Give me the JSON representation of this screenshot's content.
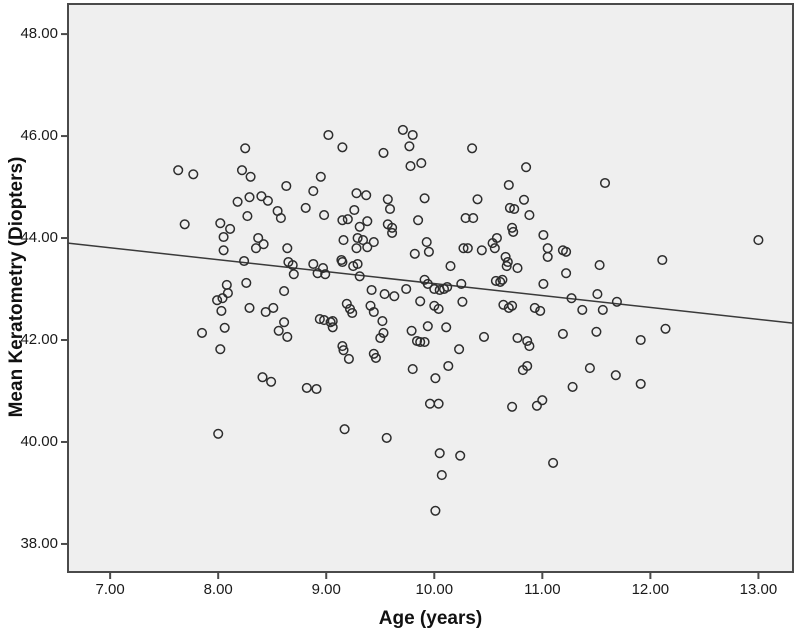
{
  "chart_data": {
    "type": "scatter",
    "title": "",
    "xlabel": "Age (years)",
    "ylabel": "Mean Keratometry (Diopters)",
    "x_ticks": [
      7,
      8,
      9,
      10,
      11,
      12,
      13
    ],
    "x_tick_labels": [
      "7.00",
      "8.00",
      "9.00",
      "10.00",
      "11.00",
      "12.00",
      "13.00"
    ],
    "y_ticks": [
      38,
      40,
      42,
      44,
      46,
      48
    ],
    "y_tick_labels": [
      "38.00",
      "40.00",
      "42.00",
      "44.00",
      "46.00",
      "48.00"
    ],
    "xlim": [
      6.61,
      13.32
    ],
    "ylim": [
      37.45,
      48.59
    ],
    "grid": false,
    "legend": "none",
    "marker": "open-circle",
    "colors": {
      "canvas_bg": "#ffffff",
      "plot_bg": "#efefef",
      "frame": "#4a4a4a",
      "marker": "#2d2d2d",
      "line": "#3a3a3a",
      "text": "#111111"
    },
    "regression_line": {
      "x1": 6.61,
      "y1": 43.9,
      "x2": 13.32,
      "y2": 42.33,
      "slope_per_year": -0.23
    },
    "points": [
      [
        8.25,
        45.76
      ],
      [
        7.63,
        45.33
      ],
      [
        7.77,
        45.25
      ],
      [
        8.22,
        45.33
      ],
      [
        8.3,
        45.2
      ],
      [
        8.63,
        45.02
      ],
      [
        9.02,
        46.02
      ],
      [
        9.15,
        45.78
      ],
      [
        9.71,
        46.12
      ],
      [
        9.8,
        46.02
      ],
      [
        9.77,
        45.8
      ],
      [
        9.53,
        45.67
      ],
      [
        10.35,
        45.76
      ],
      [
        9.78,
        45.41
      ],
      [
        9.88,
        45.47
      ],
      [
        10.85,
        45.39
      ],
      [
        8.95,
        45.2
      ],
      [
        10.69,
        45.04
      ],
      [
        11.58,
        45.08
      ],
      [
        8.18,
        44.71
      ],
      [
        8.29,
        44.8
      ],
      [
        8.4,
        44.82
      ],
      [
        8.46,
        44.73
      ],
      [
        8.55,
        44.53
      ],
      [
        8.81,
        44.59
      ],
      [
        8.58,
        44.39
      ],
      [
        8.27,
        44.43
      ],
      [
        7.69,
        44.27
      ],
      [
        8.02,
        44.29
      ],
      [
        8.11,
        44.18
      ],
      [
        8.05,
        44.02
      ],
      [
        8.37,
        44.0
      ],
      [
        8.42,
        43.88
      ],
      [
        8.35,
        43.8
      ],
      [
        8.64,
        43.8
      ],
      [
        8.65,
        43.53
      ],
      [
        8.69,
        43.47
      ],
      [
        8.7,
        43.29
      ],
      [
        8.24,
        43.55
      ],
      [
        8.05,
        43.76
      ],
      [
        8.26,
        43.12
      ],
      [
        8.08,
        43.08
      ],
      [
        8.09,
        42.92
      ],
      [
        7.99,
        42.78
      ],
      [
        8.04,
        42.82
      ],
      [
        8.03,
        42.57
      ],
      [
        8.29,
        42.63
      ],
      [
        8.44,
        42.55
      ],
      [
        8.51,
        42.63
      ],
      [
        8.61,
        42.96
      ],
      [
        8.61,
        42.35
      ],
      [
        8.56,
        42.18
      ],
      [
        8.64,
        42.06
      ],
      [
        7.85,
        42.14
      ],
      [
        8.06,
        42.24
      ],
      [
        8.02,
        41.82
      ],
      [
        8.41,
        41.27
      ],
      [
        8.49,
        41.18
      ],
      [
        8.0,
        40.16
      ],
      [
        8.98,
        44.45
      ],
      [
        9.15,
        44.35
      ],
      [
        9.26,
        44.55
      ],
      [
        9.57,
        44.76
      ],
      [
        9.59,
        44.57
      ],
      [
        9.91,
        44.78
      ],
      [
        10.4,
        44.76
      ],
      [
        10.7,
        44.59
      ],
      [
        10.74,
        44.57
      ],
      [
        10.83,
        44.75
      ],
      [
        10.88,
        44.45
      ],
      [
        9.31,
        44.22
      ],
      [
        9.38,
        44.33
      ],
      [
        9.57,
        44.27
      ],
      [
        9.61,
        44.2
      ],
      [
        9.61,
        44.1
      ],
      [
        9.85,
        44.35
      ],
      [
        10.29,
        44.39
      ],
      [
        10.36,
        44.39
      ],
      [
        9.16,
        43.96
      ],
      [
        9.29,
        44.0
      ],
      [
        9.34,
        43.96
      ],
      [
        9.44,
        43.92
      ],
      [
        9.28,
        43.8
      ],
      [
        9.38,
        43.82
      ],
      [
        9.93,
        43.92
      ],
      [
        9.82,
        43.69
      ],
      [
        9.95,
        43.73
      ],
      [
        10.27,
        43.8
      ],
      [
        10.31,
        43.8
      ],
      [
        10.44,
        43.76
      ],
      [
        10.56,
        43.8
      ],
      [
        10.54,
        43.9
      ],
      [
        10.58,
        44.0
      ],
      [
        10.72,
        44.2
      ],
      [
        10.73,
        44.12
      ],
      [
        10.66,
        43.63
      ],
      [
        10.68,
        43.53
      ],
      [
        10.67,
        43.45
      ],
      [
        10.77,
        43.41
      ],
      [
        11.01,
        44.06
      ],
      [
        11.05,
        43.8
      ],
      [
        11.05,
        43.63
      ],
      [
        9.15,
        43.53
      ],
      [
        9.25,
        43.45
      ],
      [
        9.29,
        43.49
      ],
      [
        8.88,
        43.49
      ],
      [
        8.92,
        43.31
      ],
      [
        8.97,
        43.41
      ],
      [
        8.99,
        43.29
      ],
      [
        9.14,
        43.57
      ],
      [
        9.2,
        44.37
      ],
      [
        9.31,
        43.25
      ],
      [
        9.42,
        42.98
      ],
      [
        9.54,
        42.9
      ],
      [
        9.63,
        42.86
      ],
      [
        9.74,
        43.0
      ],
      [
        9.87,
        42.76
      ],
      [
        9.91,
        43.18
      ],
      [
        9.94,
        43.1
      ],
      [
        10.0,
        43.0
      ],
      [
        10.05,
        42.98
      ],
      [
        10.09,
        43.0
      ],
      [
        10.12,
        43.04
      ],
      [
        10.15,
        43.45
      ],
      [
        10.25,
        43.1
      ],
      [
        10.0,
        42.67
      ],
      [
        10.04,
        42.61
      ],
      [
        10.26,
        42.75
      ],
      [
        10.57,
        43.16
      ],
      [
        10.61,
        43.14
      ],
      [
        10.63,
        43.18
      ],
      [
        11.01,
        43.1
      ],
      [
        10.64,
        42.69
      ],
      [
        10.69,
        42.63
      ],
      [
        10.72,
        42.67
      ],
      [
        10.93,
        42.63
      ],
      [
        10.98,
        42.57
      ],
      [
        9.19,
        42.71
      ],
      [
        9.22,
        42.61
      ],
      [
        9.24,
        42.53
      ],
      [
        8.94,
        42.41
      ],
      [
        8.98,
        42.39
      ],
      [
        9.04,
        42.35
      ],
      [
        9.06,
        42.25
      ],
      [
        9.06,
        42.37
      ],
      [
        9.52,
        42.37
      ],
      [
        9.53,
        42.14
      ],
      [
        9.5,
        42.04
      ],
      [
        9.79,
        42.18
      ],
      [
        9.94,
        42.27
      ],
      [
        10.11,
        42.25
      ],
      [
        9.84,
        41.98
      ],
      [
        9.87,
        41.96
      ],
      [
        9.91,
        41.96
      ],
      [
        9.15,
        41.88
      ],
      [
        9.16,
        41.8
      ],
      [
        9.21,
        41.63
      ],
      [
        9.44,
        41.73
      ],
      [
        9.46,
        41.65
      ],
      [
        10.23,
        41.82
      ],
      [
        10.46,
        42.06
      ],
      [
        10.77,
        42.04
      ],
      [
        10.86,
        41.98
      ],
      [
        10.88,
        41.88
      ],
      [
        10.13,
        41.49
      ],
      [
        9.8,
        41.43
      ],
      [
        10.01,
        41.25
      ],
      [
        10.86,
        41.49
      ],
      [
        10.82,
        41.41
      ],
      [
        9.41,
        42.67
      ],
      [
        9.44,
        42.55
      ],
      [
        8.82,
        41.06
      ],
      [
        8.91,
        41.04
      ],
      [
        8.88,
        44.92
      ],
      [
        9.28,
        44.88
      ],
      [
        9.37,
        44.84
      ],
      [
        13.0,
        43.96
      ],
      [
        11.19,
        43.76
      ],
      [
        11.22,
        43.73
      ],
      [
        11.53,
        43.47
      ],
      [
        12.11,
        43.57
      ],
      [
        11.22,
        43.31
      ],
      [
        11.27,
        42.82
      ],
      [
        11.51,
        42.9
      ],
      [
        11.69,
        42.75
      ],
      [
        11.37,
        42.59
      ],
      [
        11.56,
        42.59
      ],
      [
        11.19,
        42.12
      ],
      [
        11.5,
        42.16
      ],
      [
        12.14,
        42.22
      ],
      [
        11.91,
        42.0
      ],
      [
        11.44,
        41.45
      ],
      [
        11.68,
        41.31
      ],
      [
        11.91,
        41.14
      ],
      [
        11.28,
        41.08
      ],
      [
        9.96,
        40.75
      ],
      [
        10.04,
        40.75
      ],
      [
        10.72,
        40.69
      ],
      [
        10.95,
        40.71
      ],
      [
        11.0,
        40.82
      ],
      [
        9.17,
        40.25
      ],
      [
        9.56,
        40.08
      ],
      [
        10.05,
        39.78
      ],
      [
        10.24,
        39.73
      ],
      [
        10.07,
        39.35
      ],
      [
        11.1,
        39.59
      ],
      [
        10.01,
        38.65
      ]
    ]
  }
}
